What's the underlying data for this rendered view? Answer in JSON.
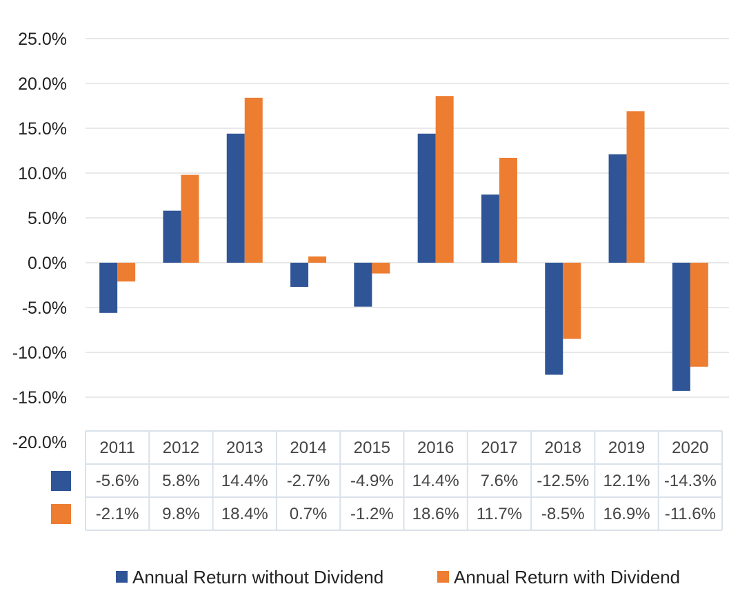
{
  "colors": {
    "series1": "#2f5597",
    "series2": "#ed7d31",
    "grid": "#d9d9d9",
    "table_border": "#d9e1ea"
  },
  "chart_data": {
    "type": "bar",
    "title": "",
    "xlabel": "",
    "ylabel": "",
    "categories": [
      "2011",
      "2012",
      "2013",
      "2014",
      "2015",
      "2016",
      "2017",
      "2018",
      "2019",
      "2020"
    ],
    "series": [
      {
        "name": "Annual Return without Dividend",
        "values": [
          -5.6,
          5.8,
          14.4,
          -2.7,
          -4.9,
          14.4,
          7.6,
          -12.5,
          12.1,
          -14.3
        ],
        "labels": [
          "-5.6%",
          "5.8%",
          "14.4%",
          "-2.7%",
          "-4.9%",
          "14.4%",
          "7.6%",
          "-12.5%",
          "12.1%",
          "-14.3%"
        ]
      },
      {
        "name": "Annual Return with Dividend",
        "values": [
          -2.1,
          9.8,
          18.4,
          0.7,
          -1.2,
          18.6,
          11.7,
          -8.5,
          16.9,
          -11.6
        ],
        "labels": [
          "-2.1%",
          "9.8%",
          "18.4%",
          "0.7%",
          "-1.2%",
          "18.6%",
          "11.7%",
          "-8.5%",
          "16.9%",
          "-11.6%"
        ]
      }
    ],
    "ylim": [
      -20,
      25
    ],
    "yticks": [
      "25.0%",
      "20.0%",
      "15.0%",
      "10.0%",
      "5.0%",
      "0.0%",
      "-5.0%",
      "-10.0%",
      "-15.0%",
      "-20.0%"
    ],
    "ytick_values": [
      25,
      20,
      15,
      10,
      5,
      0,
      -5,
      -10,
      -15,
      -20
    ],
    "grid": true,
    "legend_position": "bottom",
    "data_table": true
  }
}
